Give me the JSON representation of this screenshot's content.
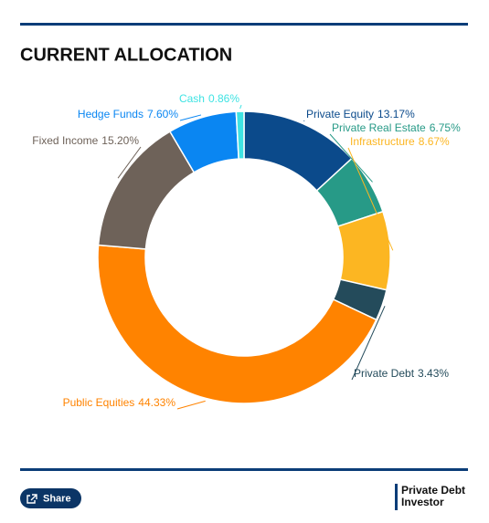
{
  "chart_data": {
    "type": "donut",
    "title": "CURRENT ALLOCATION",
    "categories": [
      "Private Equity",
      "Private Real Estate",
      "Infrastructure",
      "Private Debt",
      "Public Equities",
      "Fixed Income",
      "Hedge Funds",
      "Cash"
    ],
    "values": [
      13.17,
      6.75,
      8.67,
      3.43,
      44.33,
      15.2,
      7.6,
      0.86
    ],
    "value_labels": [
      "13.17%",
      "6.75%",
      "8.67%",
      "3.43%",
      "44.33%",
      "15.20%",
      "7.60%",
      "0.86%"
    ],
    "colors": [
      "#0b4a8b",
      "#279a87",
      "#fcb622",
      "#244b5b",
      "#ff8300",
      "#6e6259",
      "#0a86f2",
      "#3fe3e3"
    ]
  },
  "footer": {
    "share": "Share",
    "logo_line1": "Private Debt",
    "logo_line2": "Investor"
  }
}
